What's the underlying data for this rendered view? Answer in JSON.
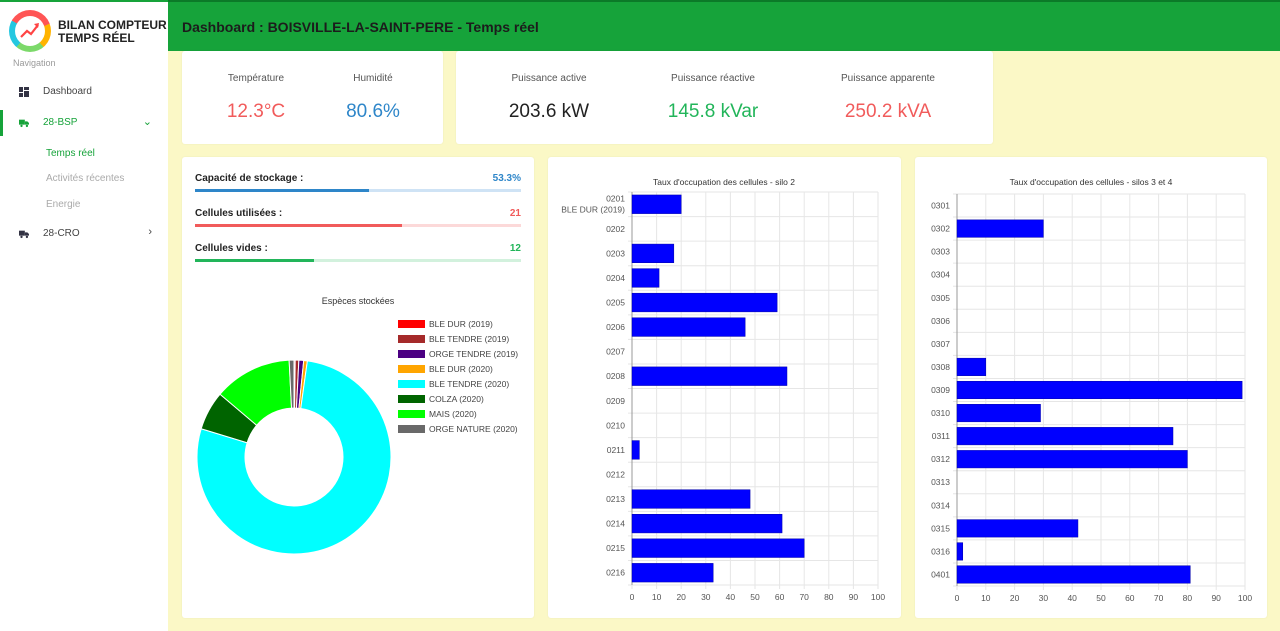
{
  "app": {
    "title_line1": "BILAN COMPTEUR",
    "title_line2": "TEMPS RÉEL"
  },
  "sidebar": {
    "nav_label": "Navigation",
    "items": [
      {
        "label": "Dashboard",
        "icon": "dashboard-icon"
      },
      {
        "label": "28-BSP",
        "icon": "truck-icon",
        "expanded": true
      },
      {
        "label": "28-CRO",
        "icon": "truck-icon",
        "expanded": false
      }
    ],
    "subitems": [
      {
        "label": "Temps réel",
        "active": true
      },
      {
        "label": "Activités récentes",
        "active": false
      },
      {
        "label": "Energie",
        "active": false
      }
    ]
  },
  "header": {
    "title": "Dashboard : BOISVILLE-LA-SAINT-PERE - Temps réel"
  },
  "weather": {
    "temperature_label": "Température",
    "temperature_value": "12.3°C",
    "humidity_label": "Humidité",
    "humidity_value": "80.6%"
  },
  "power": {
    "active_label": "Puissance active",
    "active_value": "203.6 kW",
    "reactive_label": "Puissance réactive",
    "reactive_value": "145.8 kVar",
    "apparent_label": "Puissance apparente",
    "apparent_value": "250.2 kVA"
  },
  "stock": {
    "capacity_label": "Capacité de stockage :",
    "capacity_value": "53.3%",
    "capacity_fraction": 0.533,
    "used_label": "Cellules utilisées :",
    "used_value": "21",
    "used_fraction": 0.636,
    "empty_label": "Cellules vides :",
    "empty_value": "12",
    "empty_fraction": 0.364
  },
  "colors": {
    "brand_green": "#16a33a",
    "blue": "#2e86c9",
    "red": "#f15b5b",
    "green": "#22b55a",
    "bar_blue": "#0000ff"
  },
  "chart_data": [
    {
      "type": "pie",
      "title": "Espèces stockées",
      "legend_position": "right",
      "slices": [
        {
          "label": "BLE DUR (2019)",
          "value": 0.2,
          "color": "#ff0000"
        },
        {
          "label": "BLE TENDRE (2019)",
          "value": 0.6,
          "color": "#a52a2a"
        },
        {
          "label": "ORGE TENDRE (2019)",
          "value": 0.8,
          "color": "#4b0082"
        },
        {
          "label": "BLE DUR (2020)",
          "value": 0.6,
          "color": "#ffa500"
        },
        {
          "label": "BLE TENDRE (2020)",
          "value": 77.5,
          "color": "#00ffff"
        },
        {
          "label": "COLZA (2020)",
          "value": 6.5,
          "color": "#006400"
        },
        {
          "label": "MAIS (2020)",
          "value": 13.0,
          "color": "#00ff00"
        },
        {
          "label": "ORGE NATURE (2020)",
          "value": 0.8,
          "color": "#696969"
        }
      ]
    },
    {
      "type": "bar",
      "orientation": "horizontal",
      "title": "Taux d'occupation des cellules - silo 2",
      "categories": [
        "0201",
        "0202",
        "0203",
        "0204",
        "0205",
        "0206",
        "0207",
        "0208",
        "0209",
        "0210",
        "0211",
        "0212",
        "0213",
        "0214",
        "0215",
        "0216"
      ],
      "category_sublabels": {
        "0201": "BLE DUR (2019)"
      },
      "values": [
        20,
        0,
        17,
        11,
        59,
        46,
        0,
        63,
        0,
        0,
        3,
        0,
        48,
        61,
        70,
        33
      ],
      "xlim": [
        0,
        100
      ],
      "xticks": [
        0,
        10,
        20,
        30,
        40,
        50,
        60,
        70,
        80,
        90,
        100
      ],
      "grid": true
    },
    {
      "type": "bar",
      "orientation": "horizontal",
      "title": "Taux d'occupation des cellules - silos 3 et 4",
      "categories": [
        "0301",
        "0302",
        "0303",
        "0304",
        "0305",
        "0306",
        "0307",
        "0308",
        "0309",
        "0310",
        "0311",
        "0312",
        "0313",
        "0314",
        "0315",
        "0316",
        "0401"
      ],
      "values": [
        0,
        30,
        0,
        0,
        0,
        0,
        0,
        10,
        99,
        29,
        75,
        80,
        0,
        0,
        42,
        2,
        81
      ],
      "xlim": [
        0,
        100
      ],
      "xticks": [
        0,
        10,
        20,
        30,
        40,
        50,
        60,
        70,
        80,
        90,
        100
      ],
      "grid": true
    }
  ]
}
